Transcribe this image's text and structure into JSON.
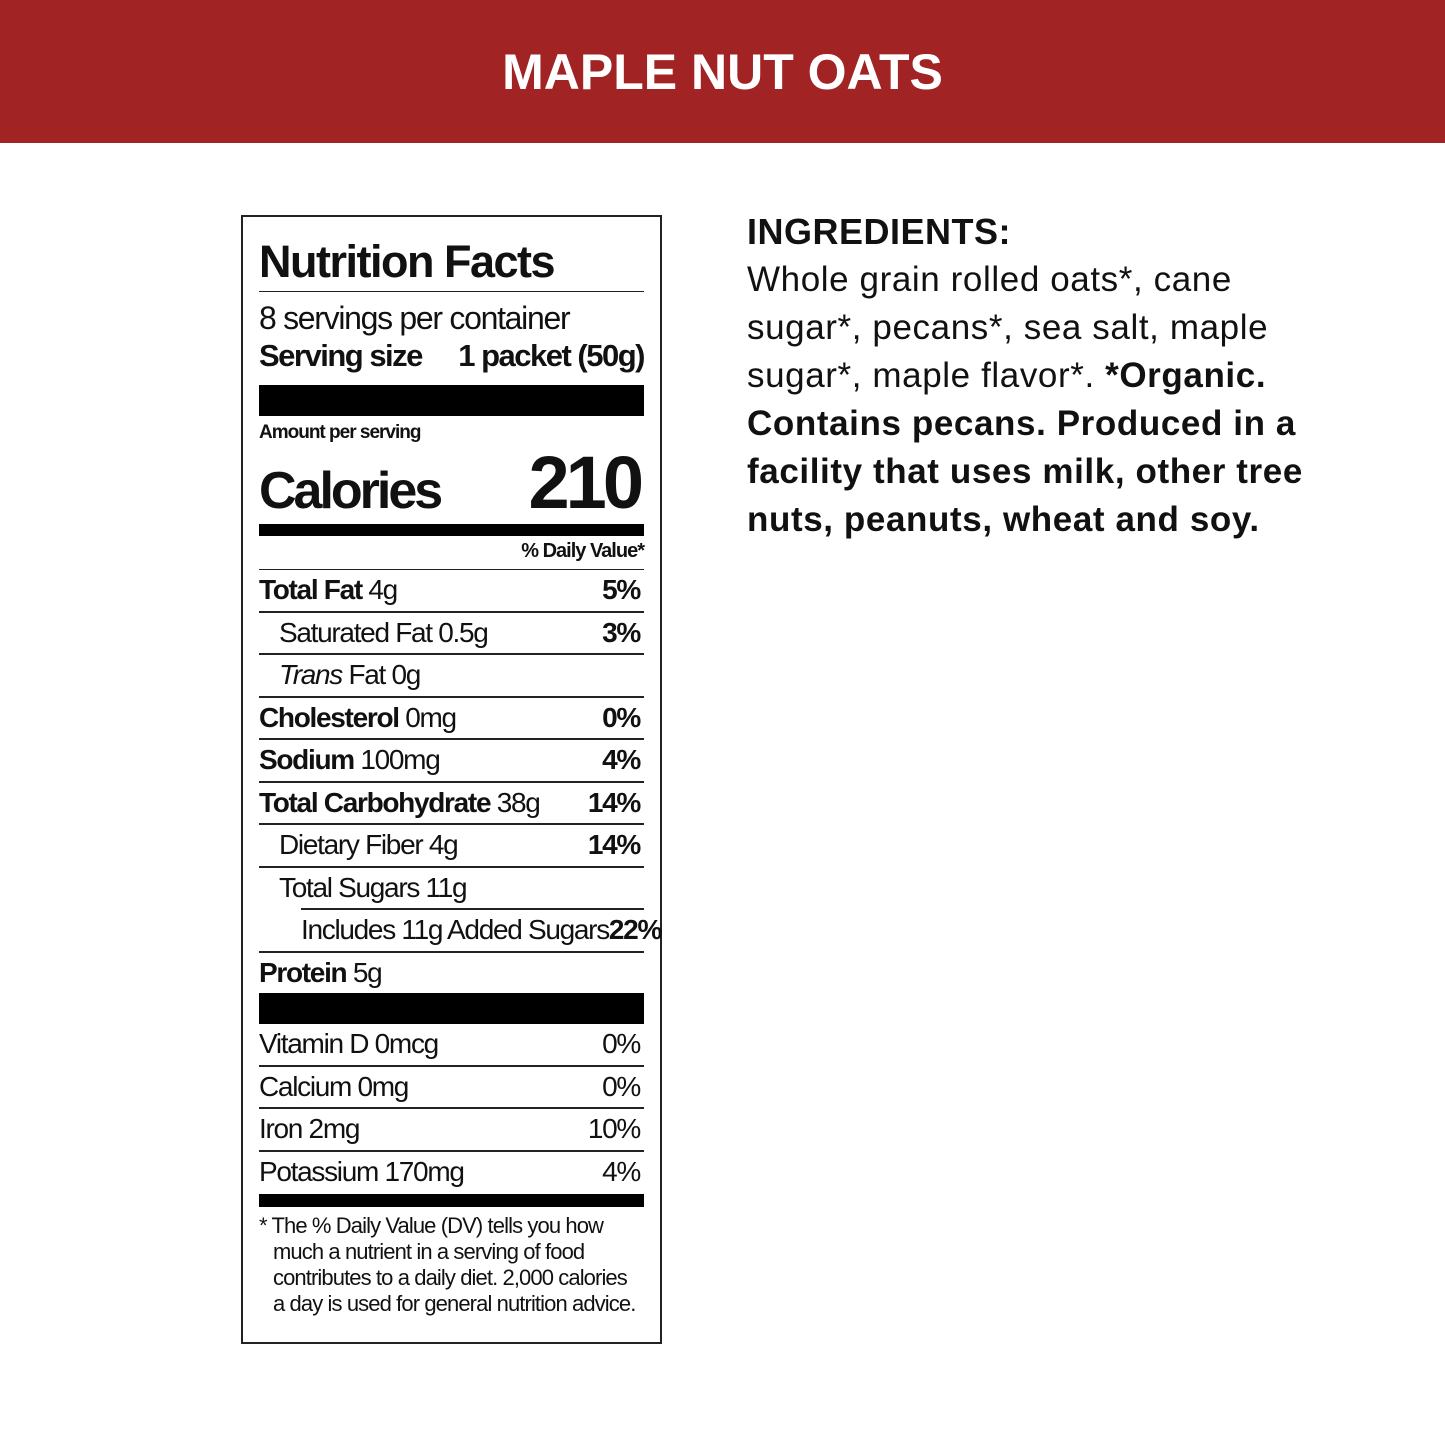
{
  "header": {
    "title": "MAPLE NUT OATS"
  },
  "nutrition_facts": {
    "title": "Nutrition Facts",
    "servings": "8 servings per container",
    "serving_size_label": "Serving size",
    "serving_size": "1 packet (50g)",
    "amount_per_serving": "Amount per serving",
    "calories_label": "Calories",
    "calories": 210,
    "daily_value_header": "% Daily Value*",
    "rows": [
      {
        "name": "Total Fat",
        "amount": "4g",
        "dv": "5%"
      },
      {
        "name": "Saturated Fat",
        "amount": "0.5g",
        "dv": "3%"
      },
      {
        "name_italic": "Trans",
        "name": "Fat",
        "amount": "0g"
      },
      {
        "name": "Cholesterol",
        "amount": "0mg",
        "dv": "0%"
      },
      {
        "name": "Sodium",
        "amount": "100mg",
        "dv": "4%"
      },
      {
        "name": "Total Carbohydrate",
        "amount": "38g",
        "dv": "14%"
      },
      {
        "name": "Dietary Fiber",
        "amount": "4g",
        "dv": "14%"
      },
      {
        "name": "Total Sugars",
        "amount": "11g"
      },
      {
        "name": "Includes 11g Added Sugars",
        "dv": "22%"
      },
      {
        "name": "Protein",
        "amount": "5g"
      }
    ],
    "vitamins": [
      {
        "name": "Vitamin D",
        "amount": "0mcg",
        "dv": "0%"
      },
      {
        "name": "Calcium",
        "amount": "0mg",
        "dv": "0%"
      },
      {
        "name": "Iron",
        "amount": "2mg",
        "dv": "10%"
      },
      {
        "name": "Potassium",
        "amount": "170mg",
        "dv": "4%"
      }
    ],
    "footnote": [
      "* The % Daily Value (DV) tells you how",
      "much a nutrient in a serving of food",
      "contributes to a daily diet. 2,000 calories",
      "a day is used for general nutrition advice."
    ]
  },
  "ingredients": {
    "title": "INGREDIENTS:",
    "text": "Whole grain rolled oats*, cane sugar*, pecans*, sea salt, maple sugar*, maple flavor*.",
    "bold_text": "*Organic. Contains pecans. Produced in a facility that uses milk, other tree nuts, peanuts, wheat and soy."
  }
}
